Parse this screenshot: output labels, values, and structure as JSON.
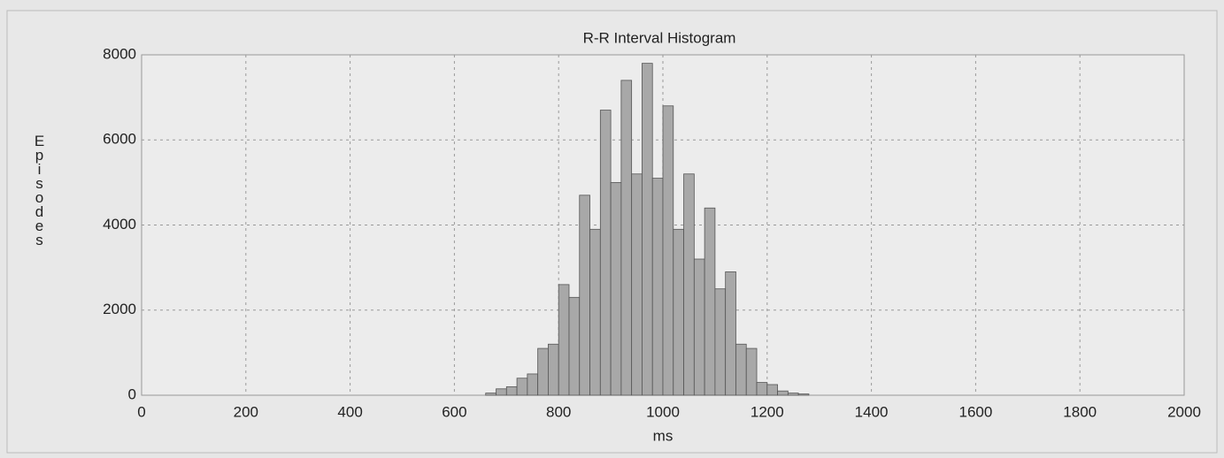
{
  "chart_data": {
    "type": "histogram",
    "title": "R-R Interval Histogram",
    "x_label": "ms",
    "y_label": "Episodes",
    "bins": [
      660,
      680,
      700,
      720,
      740,
      760,
      780,
      800,
      820,
      840,
      860,
      880,
      900,
      920,
      940,
      960,
      980,
      1000,
      1020,
      1040,
      1060,
      1080,
      1100,
      1120,
      1140,
      1160,
      1180,
      1200,
      1220,
      1240,
      1260,
      1280
    ],
    "counts": [
      50,
      150,
      200,
      400,
      500,
      1100,
      1200,
      2600,
      2300,
      4700,
      3900,
      6700,
      5000,
      7400,
      5200,
      7800,
      5100,
      6800,
      3900,
      5200,
      3200,
      4400,
      2500,
      2900,
      1200,
      1100,
      300,
      250,
      100,
      50,
      30
    ],
    "color": "#a8a8a8",
    "xlim": [
      0,
      2000
    ],
    "xticks": [
      0,
      200,
      400,
      600,
      800,
      1000,
      1200,
      1400,
      1600,
      1800,
      2000
    ],
    "ylim": [
      0,
      8000
    ],
    "yticks": [
      0,
      2000,
      4000,
      6000,
      8000
    ],
    "grid": true
  }
}
